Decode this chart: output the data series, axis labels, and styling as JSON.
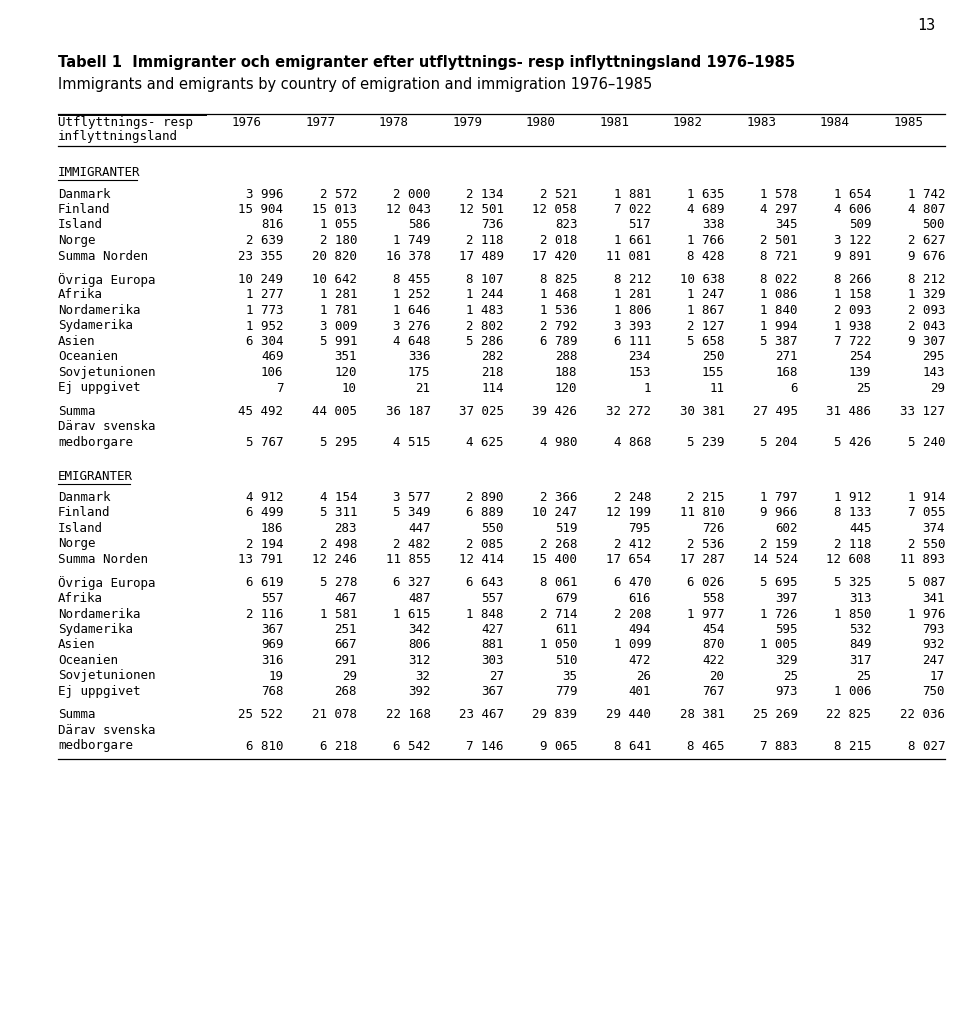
{
  "page_number": "13",
  "title_line1": "Tabell 1  Immigranter och emigranter efter utflyttnings- resp inflyttningsland 1976–1985",
  "title_line2": "Immigrants and emigrants by country of emigration and immigration 1976–1985",
  "years": [
    "1976",
    "1977",
    "1978",
    "1979",
    "1980",
    "1981",
    "1982",
    "1983",
    "1984",
    "1985"
  ],
  "section_immigranter": "IMMIGRANTER",
  "section_emigranter": "EMIGRANTER",
  "imm_rows": [
    {
      "label": "Danmark",
      "values": [
        "3 996",
        "2 572",
        "2 000",
        "2 134",
        "2 521",
        "1 881",
        "1 635",
        "1 578",
        "1 654",
        "1 742"
      ],
      "blank_before": false,
      "multiline": false
    },
    {
      "label": "Finland",
      "values": [
        "15 904",
        "15 013",
        "12 043",
        "12 501",
        "12 058",
        "7 022",
        "4 689",
        "4 297",
        "4 606",
        "4 807"
      ],
      "blank_before": false,
      "multiline": false
    },
    {
      "label": "Island",
      "values": [
        "816",
        "1 055",
        "586",
        "736",
        "823",
        "517",
        "338",
        "345",
        "509",
        "500"
      ],
      "blank_before": false,
      "multiline": false
    },
    {
      "label": "Norge",
      "values": [
        "2 639",
        "2 180",
        "1 749",
        "2 118",
        "2 018",
        "1 661",
        "1 766",
        "2 501",
        "3 122",
        "2 627"
      ],
      "blank_before": false,
      "multiline": false
    },
    {
      "label": "Summa Norden",
      "values": [
        "23 355",
        "20 820",
        "16 378",
        "17 489",
        "17 420",
        "11 081",
        "8 428",
        "8 721",
        "9 891",
        "9 676"
      ],
      "blank_before": false,
      "multiline": false
    },
    {
      "label": "Övriga Europa",
      "values": [
        "10 249",
        "10 642",
        "8 455",
        "8 107",
        "8 825",
        "8 212",
        "10 638",
        "8 022",
        "8 266",
        "8 212"
      ],
      "blank_before": true,
      "multiline": false
    },
    {
      "label": "Afrika",
      "values": [
        "1 277",
        "1 281",
        "1 252",
        "1 244",
        "1 468",
        "1 281",
        "1 247",
        "1 086",
        "1 158",
        "1 329"
      ],
      "blank_before": false,
      "multiline": false
    },
    {
      "label": "Nordamerika",
      "values": [
        "1 773",
        "1 781",
        "1 646",
        "1 483",
        "1 536",
        "1 806",
        "1 867",
        "1 840",
        "2 093",
        "2 093"
      ],
      "blank_before": false,
      "multiline": false
    },
    {
      "label": "Sydamerika",
      "values": [
        "1 952",
        "3 009",
        "3 276",
        "2 802",
        "2 792",
        "3 393",
        "2 127",
        "1 994",
        "1 938",
        "2 043"
      ],
      "blank_before": false,
      "multiline": false
    },
    {
      "label": "Asien",
      "values": [
        "6 304",
        "5 991",
        "4 648",
        "5 286",
        "6 789",
        "6 111",
        "5 658",
        "5 387",
        "7 722",
        "9 307"
      ],
      "blank_before": false,
      "multiline": false
    },
    {
      "label": "Oceanien",
      "values": [
        "469",
        "351",
        "336",
        "282",
        "288",
        "234",
        "250",
        "271",
        "254",
        "295"
      ],
      "blank_before": false,
      "multiline": false
    },
    {
      "label": "Sovjetunionen",
      "values": [
        "106",
        "120",
        "175",
        "218",
        "188",
        "153",
        "155",
        "168",
        "139",
        "143"
      ],
      "blank_before": false,
      "multiline": false
    },
    {
      "label": "Ej uppgivet",
      "values": [
        "7",
        "10",
        "21",
        "114",
        "120",
        "1",
        "11",
        "6",
        "25",
        "29"
      ],
      "blank_before": false,
      "multiline": false
    },
    {
      "label": "Summa",
      "values": [
        "45 492",
        "44 005",
        "36 187",
        "37 025",
        "39 426",
        "32 272",
        "30 381",
        "27 495",
        "31 486",
        "33 127"
      ],
      "blank_before": true,
      "multiline": false
    },
    {
      "label": "Därav svenska",
      "values": [
        "",
        "",
        "",
        "",
        "",
        "",
        "",
        "",
        "",
        ""
      ],
      "blank_before": false,
      "multiline": false
    },
    {
      "label": "medborgare",
      "values": [
        "5 767",
        "5 295",
        "4 515",
        "4 625",
        "4 980",
        "4 868",
        "5 239",
        "5 204",
        "5 426",
        "5 240"
      ],
      "blank_before": false,
      "multiline": false
    }
  ],
  "em_rows": [
    {
      "label": "Danmark",
      "values": [
        "4 912",
        "4 154",
        "3 577",
        "2 890",
        "2 366",
        "2 248",
        "2 215",
        "1 797",
        "1 912",
        "1 914"
      ],
      "blank_before": false,
      "multiline": false
    },
    {
      "label": "Finland",
      "values": [
        "6 499",
        "5 311",
        "5 349",
        "6 889",
        "10 247",
        "12 199",
        "11 810",
        "9 966",
        "8 133",
        "7 055"
      ],
      "blank_before": false,
      "multiline": false
    },
    {
      "label": "Island",
      "values": [
        "186",
        "283",
        "447",
        "550",
        "519",
        "795",
        "726",
        "602",
        "445",
        "374"
      ],
      "blank_before": false,
      "multiline": false
    },
    {
      "label": "Norge",
      "values": [
        "2 194",
        "2 498",
        "2 482",
        "2 085",
        "2 268",
        "2 412",
        "2 536",
        "2 159",
        "2 118",
        "2 550"
      ],
      "blank_before": false,
      "multiline": false
    },
    {
      "label": "Summa Norden",
      "values": [
        "13 791",
        "12 246",
        "11 855",
        "12 414",
        "15 400",
        "17 654",
        "17 287",
        "14 524",
        "12 608",
        "11 893"
      ],
      "blank_before": false,
      "multiline": false
    },
    {
      "label": "Övriga Europa",
      "values": [
        "6 619",
        "5 278",
        "6 327",
        "6 643",
        "8 061",
        "6 470",
        "6 026",
        "5 695",
        "5 325",
        "5 087"
      ],
      "blank_before": true,
      "multiline": false
    },
    {
      "label": "Afrika",
      "values": [
        "557",
        "467",
        "487",
        "557",
        "679",
        "616",
        "558",
        "397",
        "313",
        "341"
      ],
      "blank_before": false,
      "multiline": false
    },
    {
      "label": "Nordamerika",
      "values": [
        "2 116",
        "1 581",
        "1 615",
        "1 848",
        "2 714",
        "2 208",
        "1 977",
        "1 726",
        "1 850",
        "1 976"
      ],
      "blank_before": false,
      "multiline": false
    },
    {
      "label": "Sydamerika",
      "values": [
        "367",
        "251",
        "342",
        "427",
        "611",
        "494",
        "454",
        "595",
        "532",
        "793"
      ],
      "blank_before": false,
      "multiline": false
    },
    {
      "label": "Asien",
      "values": [
        "969",
        "667",
        "806",
        "881",
        "1 050",
        "1 099",
        "870",
        "1 005",
        "849",
        "932"
      ],
      "blank_before": false,
      "multiline": false
    },
    {
      "label": "Oceanien",
      "values": [
        "316",
        "291",
        "312",
        "303",
        "510",
        "472",
        "422",
        "329",
        "317",
        "247"
      ],
      "blank_before": false,
      "multiline": false
    },
    {
      "label": "Sovjetunionen",
      "values": [
        "19",
        "29",
        "32",
        "27",
        "35",
        "26",
        "20",
        "25",
        "25",
        "17"
      ],
      "blank_before": false,
      "multiline": false
    },
    {
      "label": "Ej uppgivet",
      "values": [
        "768",
        "268",
        "392",
        "367",
        "779",
        "401",
        "767",
        "973",
        "1 006",
        "750"
      ],
      "blank_before": false,
      "multiline": false
    },
    {
      "label": "Summa",
      "values": [
        "25 522",
        "21 078",
        "22 168",
        "23 467",
        "29 839",
        "29 440",
        "28 381",
        "25 269",
        "22 825",
        "22 036"
      ],
      "blank_before": true,
      "multiline": false
    },
    {
      "label": "Därav svenska",
      "values": [
        "",
        "",
        "",
        "",
        "",
        "",
        "",
        "",
        "",
        ""
      ],
      "blank_before": false,
      "multiline": false
    },
    {
      "label": "medborgare",
      "values": [
        "6 810",
        "6 218",
        "6 542",
        "7 146",
        "9 065",
        "8 641",
        "8 465",
        "7 883",
        "8 215",
        "8 027"
      ],
      "blank_before": false,
      "multiline": false
    }
  ]
}
